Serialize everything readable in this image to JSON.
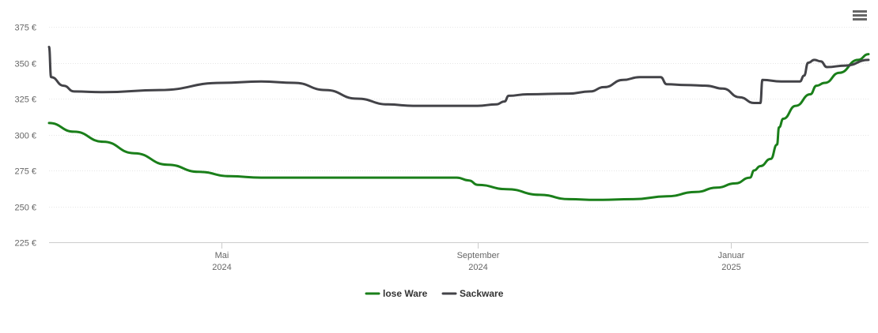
{
  "chart_data": {
    "type": "line",
    "title": "",
    "xlabel": "",
    "ylabel": "",
    "ylim": [
      225,
      375
    ],
    "y_ticks": [
      225,
      250,
      275,
      300,
      325,
      350,
      375
    ],
    "y_tick_labels": [
      "225 €",
      "250 €",
      "275 €",
      "300 €",
      "325 €",
      "350 €",
      "375 €"
    ],
    "x_range": [
      "2024-02-08",
      "2025-03-08"
    ],
    "x_ticks": [
      {
        "date": "2024-05-01",
        "month": "Mai",
        "year": "2024"
      },
      {
        "date": "2024-09-01",
        "month": "September",
        "year": "2024"
      },
      {
        "date": "2025-01-01",
        "month": "Januar",
        "year": "2025"
      }
    ],
    "grid": true,
    "legend_position": "bottom-center",
    "series": [
      {
        "name": "lose Ware",
        "color": "#1a7f1a",
        "points": [
          [
            "2024-02-08",
            308
          ],
          [
            "2024-02-20",
            302
          ],
          [
            "2024-03-05",
            295
          ],
          [
            "2024-03-20",
            287
          ],
          [
            "2024-04-05",
            279
          ],
          [
            "2024-04-20",
            274
          ],
          [
            "2024-05-05",
            271
          ],
          [
            "2024-05-20",
            270
          ],
          [
            "2024-06-15",
            270
          ],
          [
            "2024-07-15",
            270
          ],
          [
            "2024-08-15",
            270
          ],
          [
            "2024-08-22",
            270
          ],
          [
            "2024-08-28",
            268
          ],
          [
            "2024-09-01",
            265
          ],
          [
            "2024-09-15",
            262
          ],
          [
            "2024-10-01",
            258
          ],
          [
            "2024-10-15",
            255
          ],
          [
            "2024-10-28",
            254.5
          ],
          [
            "2024-11-15",
            255
          ],
          [
            "2024-12-01",
            257
          ],
          [
            "2024-12-15",
            260
          ],
          [
            "2024-12-25",
            263
          ],
          [
            "2025-01-03",
            266
          ],
          [
            "2025-01-10",
            270
          ],
          [
            "2025-01-12",
            275
          ],
          [
            "2025-01-15",
            278
          ],
          [
            "2025-01-20",
            283
          ],
          [
            "2025-01-23",
            293
          ],
          [
            "2025-01-24",
            305
          ],
          [
            "2025-01-26",
            311
          ],
          [
            "2025-02-01",
            320
          ],
          [
            "2025-02-08",
            328
          ],
          [
            "2025-02-11",
            334
          ],
          [
            "2025-02-15",
            336
          ],
          [
            "2025-02-22",
            343
          ],
          [
            "2025-03-03",
            352
          ],
          [
            "2025-03-08",
            356
          ]
        ]
      },
      {
        "name": "Sackware",
        "color": "#434348",
        "points": [
          [
            "2024-02-08",
            361
          ],
          [
            "2024-02-09",
            340
          ],
          [
            "2024-02-15",
            334
          ],
          [
            "2024-02-20",
            330
          ],
          [
            "2024-03-05",
            329.5
          ],
          [
            "2024-04-01",
            331
          ],
          [
            "2024-05-01",
            336
          ],
          [
            "2024-05-20",
            337
          ],
          [
            "2024-06-05",
            336
          ],
          [
            "2024-06-20",
            331
          ],
          [
            "2024-07-05",
            325
          ],
          [
            "2024-07-20",
            321
          ],
          [
            "2024-08-01",
            320
          ],
          [
            "2024-09-01",
            320
          ],
          [
            "2024-09-10",
            321
          ],
          [
            "2024-09-14",
            323
          ],
          [
            "2024-09-16",
            327
          ],
          [
            "2024-09-25",
            328
          ],
          [
            "2024-10-15",
            328.5
          ],
          [
            "2024-10-25",
            330
          ],
          [
            "2024-11-01",
            333
          ],
          [
            "2024-11-10",
            338
          ],
          [
            "2024-11-18",
            340
          ],
          [
            "2024-11-28",
            340
          ],
          [
            "2024-12-01",
            335
          ],
          [
            "2024-12-10",
            334.5
          ],
          [
            "2024-12-20",
            334
          ],
          [
            "2024-12-28",
            332
          ],
          [
            "2025-01-05",
            326
          ],
          [
            "2025-01-12",
            322
          ],
          [
            "2025-01-15",
            322
          ],
          [
            "2025-01-16",
            338
          ],
          [
            "2025-01-25",
            337
          ],
          [
            "2025-02-03",
            337
          ],
          [
            "2025-02-05",
            341
          ],
          [
            "2025-02-07",
            350
          ],
          [
            "2025-02-10",
            352
          ],
          [
            "2025-02-13",
            351
          ],
          [
            "2025-02-16",
            347
          ],
          [
            "2025-02-25",
            348
          ],
          [
            "2025-03-08",
            352
          ]
        ]
      }
    ]
  },
  "icons": {
    "menu": "hamburger-menu-icon"
  }
}
